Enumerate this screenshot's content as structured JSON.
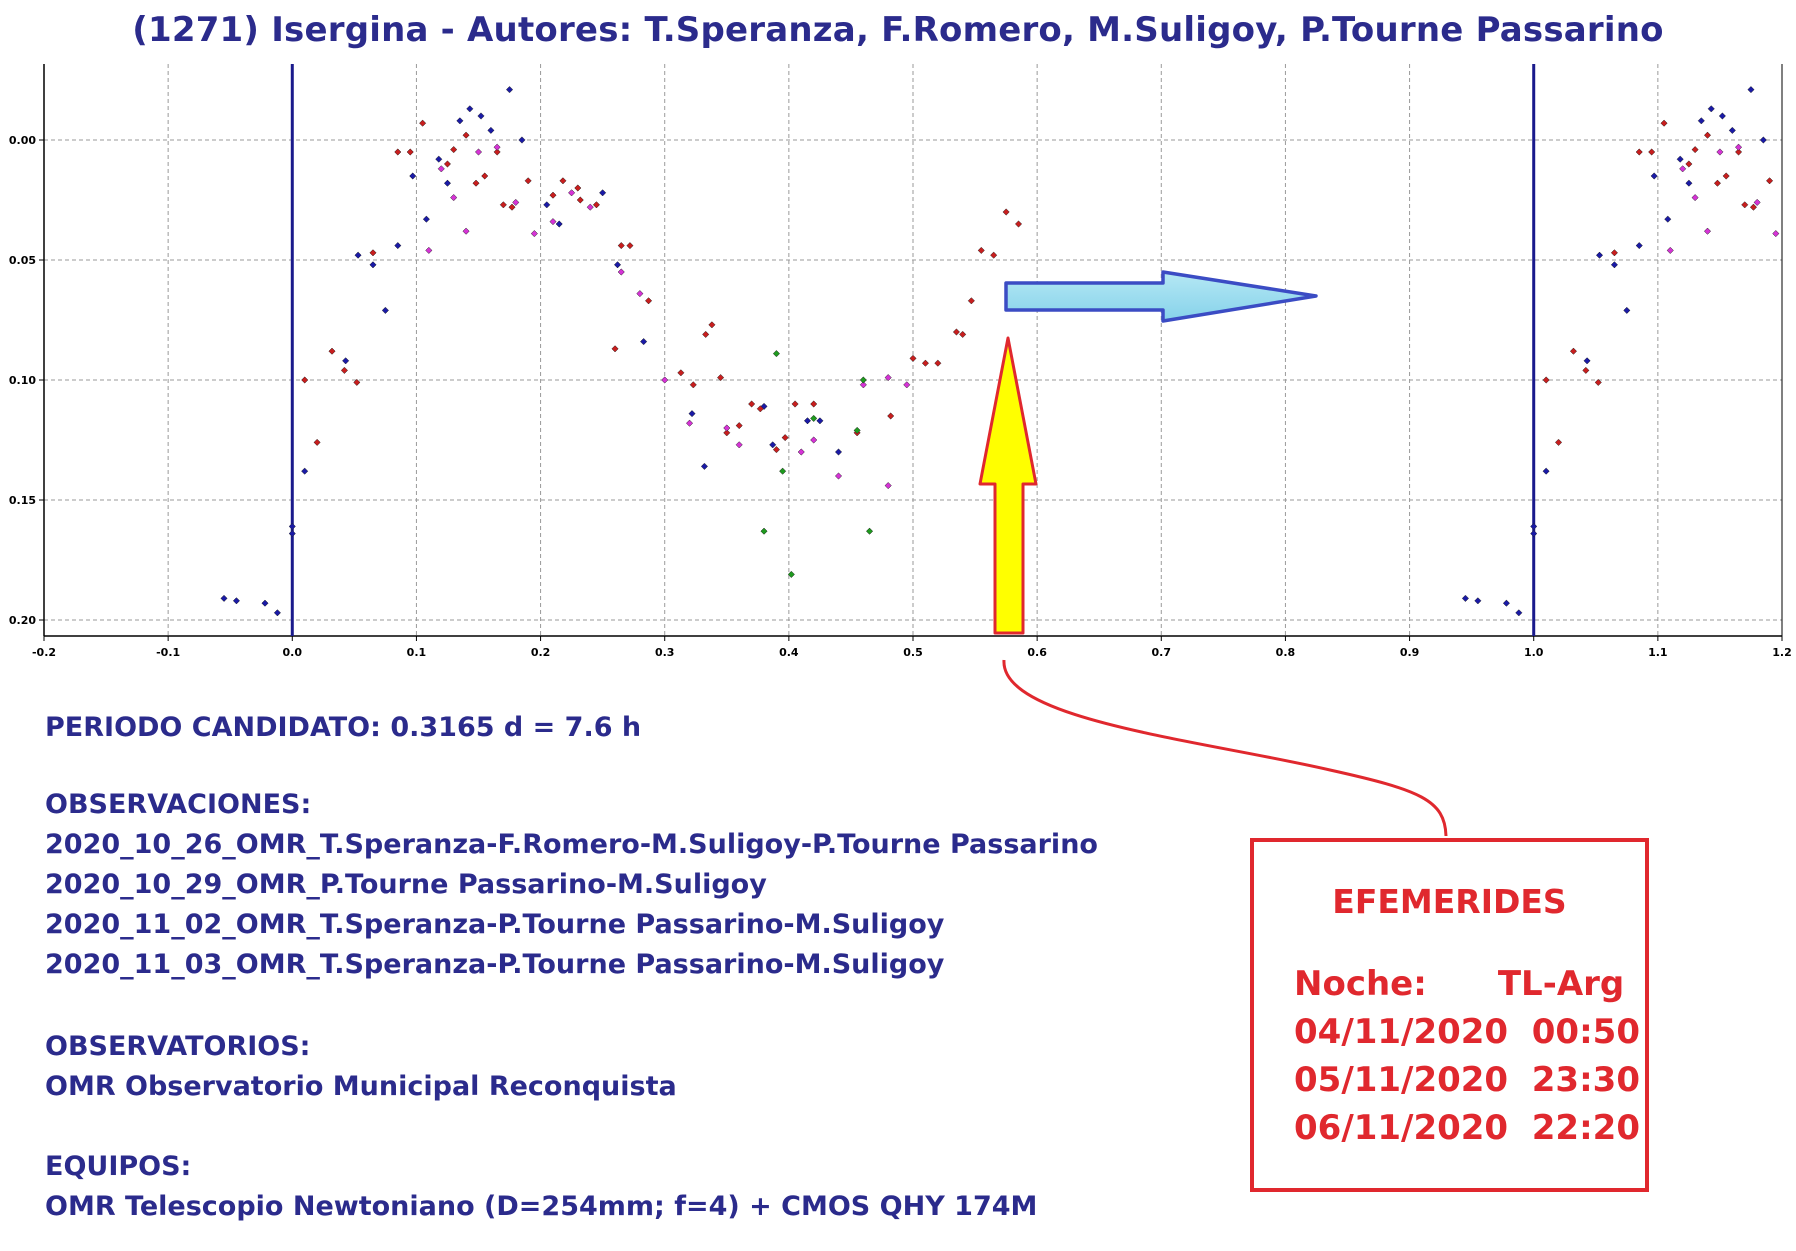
{
  "title": "(1271) Isergina - Autores: T.Speranza, F.Romero, M.Suligoy, P.Tourne Passarino",
  "chart_data": {
    "type": "scatter",
    "title": "(1271) Isergina - Autores: T.Speranza, F.Romero, M.Suligoy, P.Tourne Passarino",
    "xlabel": "",
    "ylabel": "",
    "xlim": [
      -0.2,
      1.2
    ],
    "ylim": [
      0.2,
      -0.03
    ],
    "y_inverted": true,
    "grid": true,
    "x_ticks": [
      "-0.2",
      "-0.1",
      "0.0",
      "0.1",
      "0.2",
      "0.3",
      "0.4",
      "0.5",
      "0.6",
      "0.7",
      "0.8",
      "0.9",
      "1.0",
      "1.1",
      "1.2"
    ],
    "y_ticks": [
      "0.00",
      "0.05",
      "0.10",
      "0.15",
      "0.20"
    ],
    "vertical_lines": [
      0.0,
      1.0
    ],
    "colors": {
      "blue": "#1a1aa6",
      "red": "#c81e1e",
      "magenta": "#d633d6",
      "green": "#1e9a1e",
      "line": "#1a1a8c"
    },
    "series": [
      {
        "color": "blue",
        "points": [
          [
            -0.055,
            0.191
          ],
          [
            -0.045,
            0.192
          ],
          [
            -0.022,
            0.193
          ],
          [
            -0.012,
            0.197
          ],
          [
            0.0,
            0.161
          ],
          [
            0.0,
            0.164
          ],
          [
            0.01,
            0.138
          ],
          [
            0.043,
            0.092
          ],
          [
            0.053,
            0.048
          ],
          [
            0.065,
            0.052
          ],
          [
            0.075,
            0.071
          ],
          [
            0.085,
            0.044
          ],
          [
            0.097,
            0.015
          ],
          [
            0.108,
            0.033
          ],
          [
            0.118,
            0.008
          ],
          [
            0.125,
            0.018
          ],
          [
            0.135,
            -0.008
          ],
          [
            0.143,
            -0.013
          ],
          [
            0.152,
            -0.01
          ],
          [
            0.16,
            -0.004
          ],
          [
            0.175,
            -0.021
          ],
          [
            0.185,
            0.0
          ],
          [
            0.205,
            0.027
          ],
          [
            0.215,
            0.035
          ],
          [
            0.25,
            0.022
          ],
          [
            0.262,
            0.052
          ],
          [
            0.283,
            0.084
          ],
          [
            0.322,
            0.114
          ],
          [
            0.332,
            0.136
          ],
          [
            0.38,
            0.111
          ],
          [
            0.387,
            0.127
          ],
          [
            0.415,
            0.117
          ],
          [
            0.425,
            0.117
          ],
          [
            0.44,
            0.13
          ]
        ]
      },
      {
        "color": "red",
        "points": [
          [
            0.01,
            0.1
          ],
          [
            0.02,
            0.126
          ],
          [
            0.032,
            0.088
          ],
          [
            0.042,
            0.096
          ],
          [
            0.052,
            0.101
          ],
          [
            0.065,
            0.047
          ],
          [
            0.085,
            0.005
          ],
          [
            0.095,
            0.005
          ],
          [
            0.105,
            -0.007
          ],
          [
            0.125,
            0.01
          ],
          [
            0.13,
            0.004
          ],
          [
            0.14,
            -0.002
          ],
          [
            0.148,
            0.018
          ],
          [
            0.155,
            0.015
          ],
          [
            0.165,
            0.005
          ],
          [
            0.17,
            0.027
          ],
          [
            0.177,
            0.028
          ],
          [
            0.19,
            0.017
          ],
          [
            0.21,
            0.023
          ],
          [
            0.218,
            0.017
          ],
          [
            0.23,
            0.02
          ],
          [
            0.232,
            0.025
          ],
          [
            0.245,
            0.027
          ],
          [
            0.26,
            0.087
          ],
          [
            0.265,
            0.044
          ],
          [
            0.272,
            0.044
          ],
          [
            0.287,
            0.067
          ],
          [
            0.313,
            0.097
          ],
          [
            0.323,
            0.102
          ],
          [
            0.333,
            0.081
          ],
          [
            0.338,
            0.077
          ],
          [
            0.345,
            0.099
          ],
          [
            0.35,
            0.122
          ],
          [
            0.36,
            0.119
          ],
          [
            0.37,
            0.11
          ],
          [
            0.377,
            0.112
          ],
          [
            0.39,
            0.129
          ],
          [
            0.397,
            0.124
          ],
          [
            0.405,
            0.11
          ],
          [
            0.42,
            0.11
          ],
          [
            0.455,
            0.122
          ],
          [
            0.482,
            0.115
          ],
          [
            0.5,
            0.091
          ],
          [
            0.51,
            0.093
          ],
          [
            0.52,
            0.093
          ],
          [
            0.535,
            0.08
          ],
          [
            0.54,
            0.081
          ],
          [
            0.547,
            0.067
          ],
          [
            0.555,
            0.046
          ],
          [
            0.565,
            0.048
          ],
          [
            0.575,
            0.03
          ],
          [
            0.585,
            0.035
          ]
        ]
      },
      {
        "color": "magenta",
        "points": [
          [
            0.11,
            0.046
          ],
          [
            0.12,
            0.012
          ],
          [
            0.13,
            0.024
          ],
          [
            0.14,
            0.038
          ],
          [
            0.15,
            0.005
          ],
          [
            0.165,
            0.003
          ],
          [
            0.18,
            0.026
          ],
          [
            0.195,
            0.039
          ],
          [
            0.21,
            0.034
          ],
          [
            0.225,
            0.022
          ],
          [
            0.24,
            0.028
          ],
          [
            0.265,
            0.055
          ],
          [
            0.28,
            0.064
          ],
          [
            0.3,
            0.1
          ],
          [
            0.32,
            0.118
          ],
          [
            0.35,
            0.12
          ],
          [
            0.36,
            0.127
          ],
          [
            0.41,
            0.13
          ],
          [
            0.42,
            0.125
          ],
          [
            0.44,
            0.14
          ],
          [
            0.46,
            0.102
          ],
          [
            0.48,
            0.099
          ],
          [
            0.495,
            0.102
          ],
          [
            0.48,
            0.144
          ]
        ]
      },
      {
        "color": "green",
        "points": [
          [
            0.39,
            0.089
          ],
          [
            0.395,
            0.138
          ],
          [
            0.38,
            0.163
          ],
          [
            0.402,
            0.181
          ],
          [
            0.42,
            0.116
          ],
          [
            0.46,
            0.1
          ],
          [
            0.455,
            0.121
          ],
          [
            0.465,
            0.163
          ]
        ]
      }
    ]
  },
  "info": {
    "periodo": "PERIODO CANDIDATO: 0.3165 d = 7.6 h",
    "obs_title": "OBSERVACIONES:",
    "obs_lines": [
      "2020_10_26_OMR_T.Speranza-F.Romero-M.Suligoy-P.Tourne Passarino",
      "2020_10_29_OMR_P.Tourne Passarino-M.Suligoy",
      "2020_11_02_OMR_T.Speranza-P.Tourne Passarino-M.Suligoy",
      "2020_11_03_OMR_T.Speranza-P.Tourne Passarino-M.Suligoy"
    ],
    "obsv_title": "OBSERVATORIOS:",
    "obsv_line": "OMR Observatorio Municipal Reconquista",
    "eq_title": "EQUIPOS:",
    "eq_line": "OMR Telescopio Newtoniano (D=254mm; f=4) + CMOS QHY 174M"
  },
  "efemerides": {
    "title": "EFEMERIDES",
    "header": "Noche:      TL-Arg",
    "rows": [
      "04/11/2020  00:50",
      "05/11/2020  23:30",
      "06/11/2020  22:20"
    ]
  }
}
